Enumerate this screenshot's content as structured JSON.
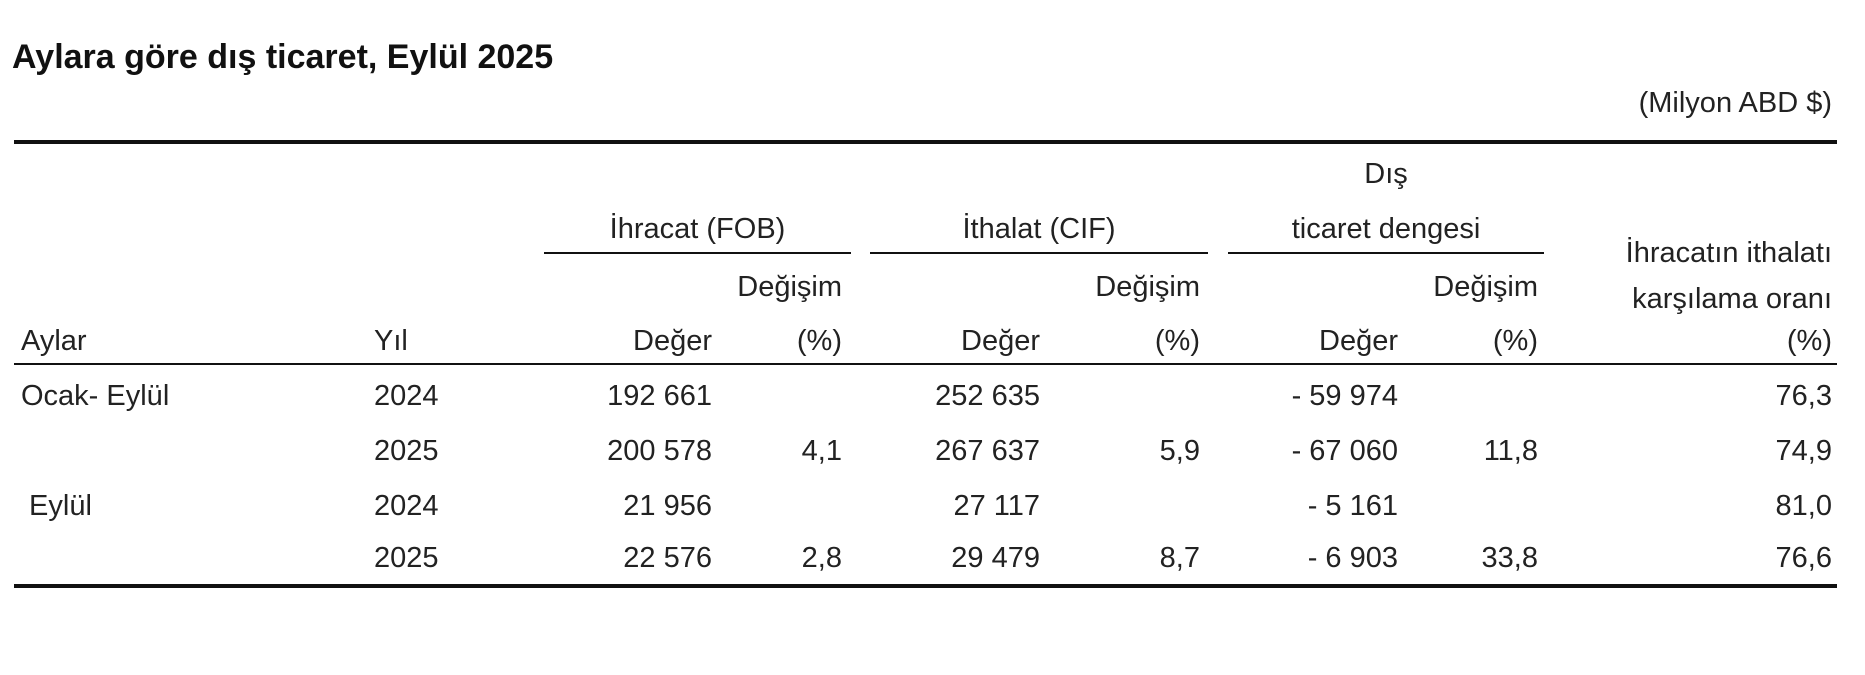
{
  "title": "Aylara göre dış ticaret, Eylül 2025",
  "unit": "(Milyon ABD $)",
  "headers": {
    "exports_group": "İhracat (FOB)",
    "imports_group": "İthalat (CIF)",
    "balance_group_line1": "Dış",
    "balance_group_line2": "ticaret dengesi",
    "coverage_line1": "İhracatın ithalatı",
    "coverage_line2": "karşılama oranı",
    "change": "Değişim",
    "months": "Aylar",
    "year": "Yıl",
    "value": "Değer",
    "pct": "(%)"
  },
  "rows": [
    {
      "period": "Ocak- Eylül",
      "year": "2024",
      "exp_value": "192 661",
      "exp_pct": "",
      "imp_value": "252 635",
      "imp_pct": "",
      "bal_value": "- 59 974",
      "bal_pct": "",
      "coverage": "76,3"
    },
    {
      "period": "",
      "year": "2025",
      "exp_value": "200 578",
      "exp_pct": "4,1",
      "imp_value": "267 637",
      "imp_pct": "5,9",
      "bal_value": "- 67 060",
      "bal_pct": "11,8",
      "coverage": "74,9"
    },
    {
      "period": " Eylül",
      "year": "2024",
      "exp_value": "21 956",
      "exp_pct": "",
      "imp_value": "27 117",
      "imp_pct": "",
      "bal_value": "- 5 161",
      "bal_pct": "",
      "coverage": "81,0"
    },
    {
      "period": "",
      "year": "2025",
      "exp_value": "22 576",
      "exp_pct": "2,8",
      "imp_value": "29 479",
      "imp_pct": "8,7",
      "bal_value": "- 6 903",
      "bal_pct": "33,8",
      "coverage": "76,6"
    }
  ]
}
